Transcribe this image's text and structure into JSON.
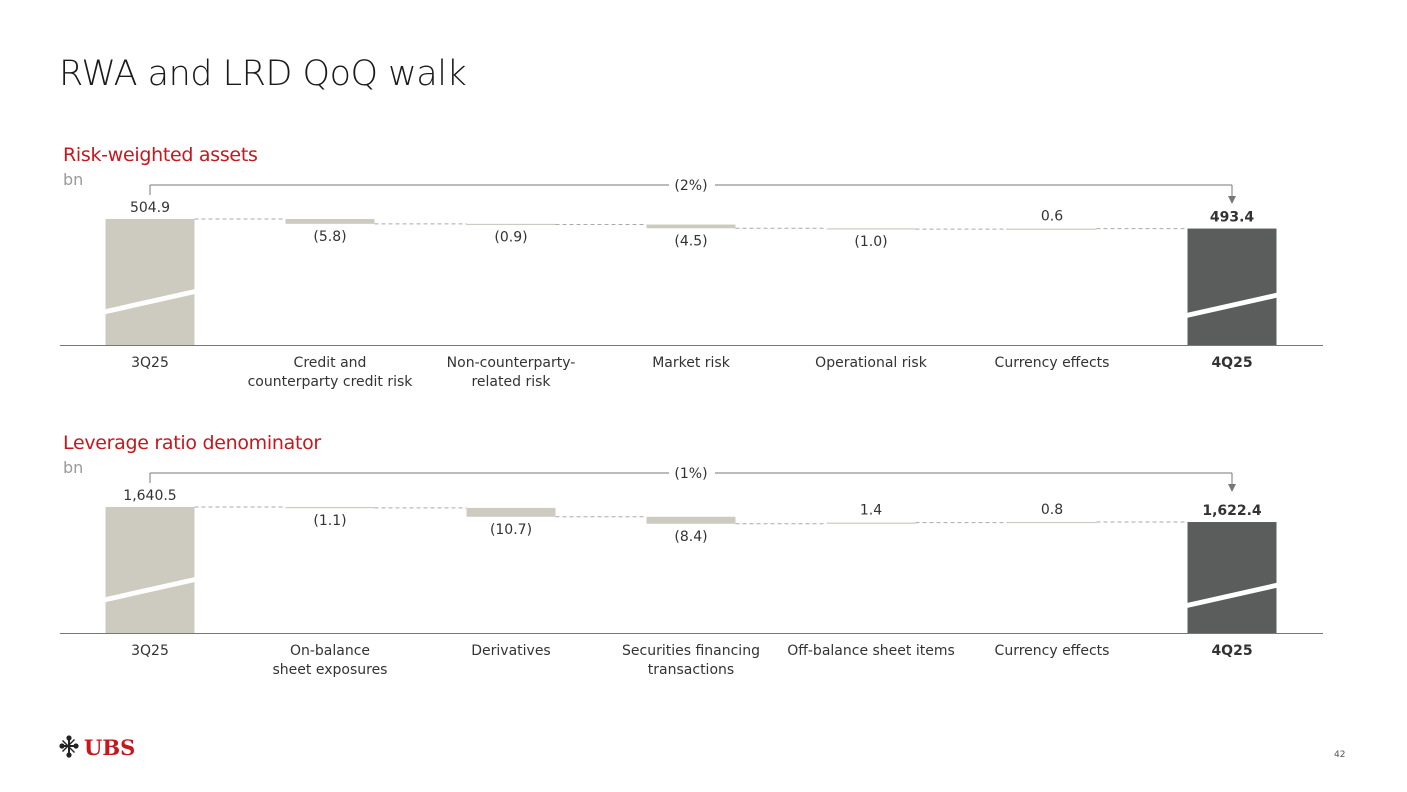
{
  "title": "RWA and LRD QoQ walk",
  "brand": "UBS",
  "page_number": "42",
  "colors": {
    "accent": "#c8161d",
    "start_bar": "#cdcbbf",
    "end_bar": "#5b5c5c",
    "axis": "#777777",
    "connector": "#aaaaaa"
  },
  "chart_data": [
    {
      "type": "bar",
      "title": "Risk-weighted assets",
      "unit": "bn",
      "categories": [
        "3Q25",
        "Credit and\ncounterparty credit risk",
        "Non-counterparty-\nrelated risk",
        "Market risk",
        "Operational risk",
        "Currency effects",
        "4Q25"
      ],
      "values": [
        504.9,
        -5.8,
        -0.9,
        -4.5,
        -1.0,
        0.6,
        493.4
      ],
      "value_labels": [
        "504.9",
        "(5.8)",
        "(0.9)",
        "(4.5)",
        "(1.0)",
        "0.6",
        "493.4"
      ],
      "bar_kinds": [
        "total",
        "delta",
        "delta",
        "delta",
        "delta",
        "delta",
        "total"
      ],
      "overall_change_label": "(2%)",
      "axis_break": true
    },
    {
      "type": "bar",
      "title": "Leverage ratio denominator",
      "unit": "bn",
      "categories": [
        "3Q25",
        "On-balance\nsheet exposures",
        "Derivatives",
        "Securities financing\ntransactions",
        "Off-balance sheet items",
        "Currency effects",
        "4Q25"
      ],
      "values": [
        1640.5,
        -1.1,
        -10.7,
        -8.4,
        1.4,
        0.8,
        1622.4
      ],
      "value_labels": [
        "1,640.5",
        "(1.1)",
        "(10.7)",
        "(8.4)",
        "1.4",
        "0.8",
        "1,622.4"
      ],
      "bar_kinds": [
        "total",
        "delta",
        "delta",
        "delta",
        "delta",
        "delta",
        "total"
      ],
      "overall_change_label": "(1%)",
      "axis_break": true
    }
  ]
}
